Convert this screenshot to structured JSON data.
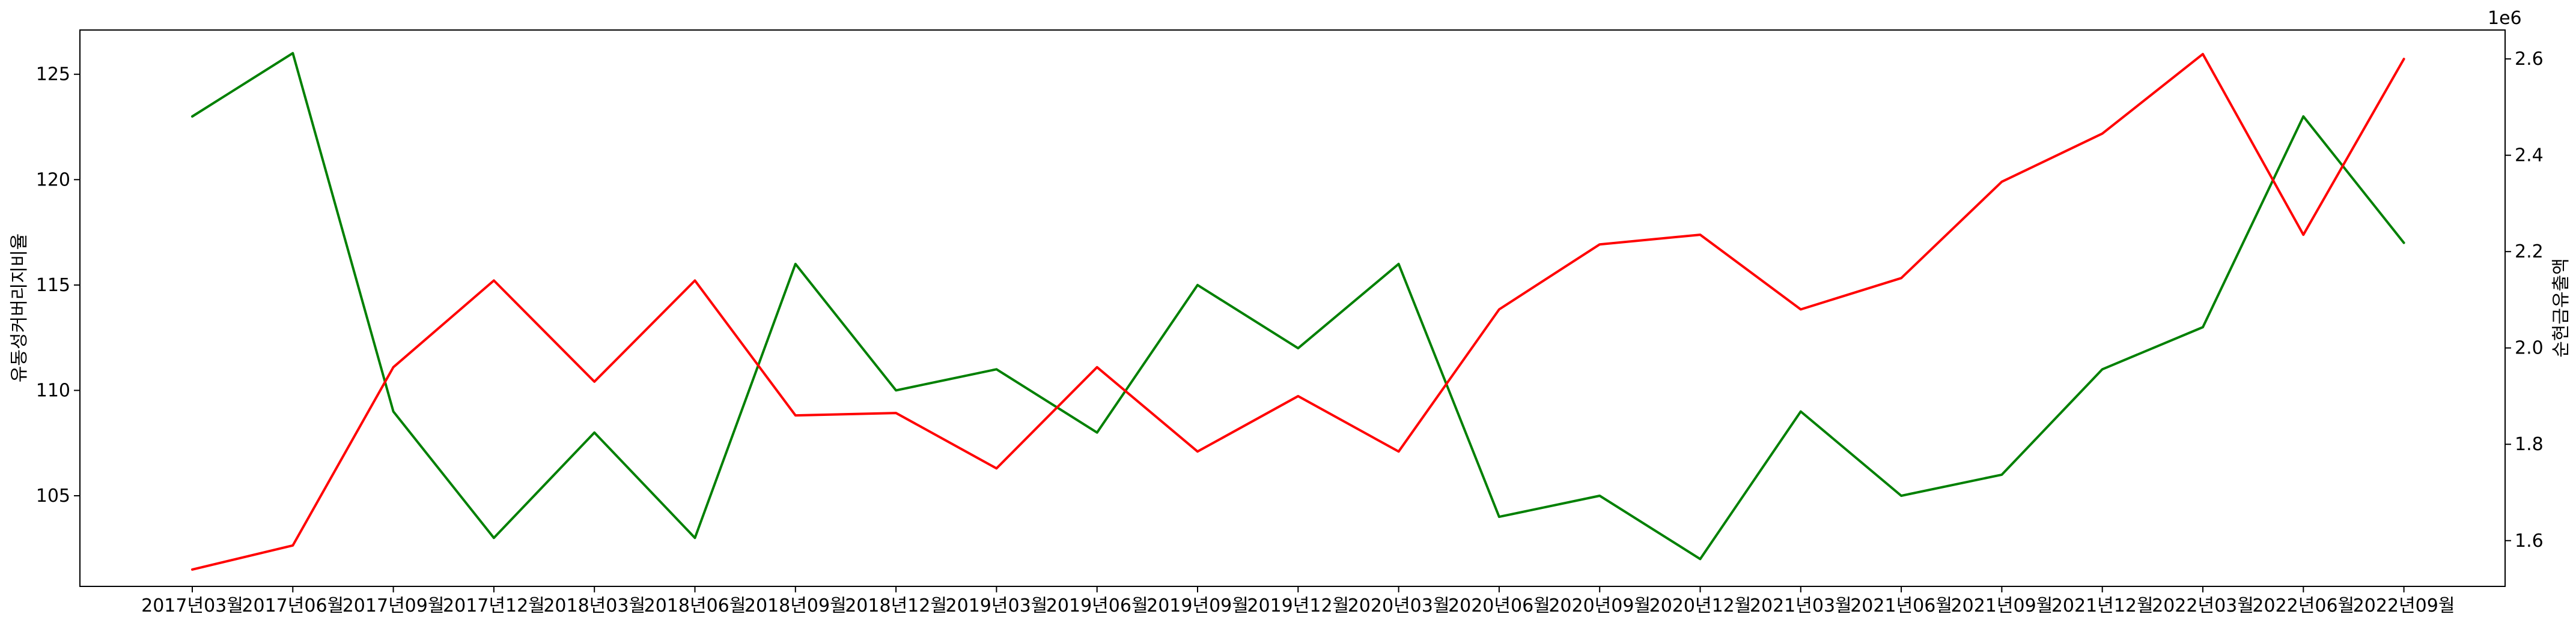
{
  "chart_data": {
    "type": "line",
    "categories": [
      "2017년03월",
      "2017년06월",
      "2017년09월",
      "2017년12월",
      "2018년03월",
      "2018년06월",
      "2018년09월",
      "2018년12월",
      "2019년03월",
      "2019년06월",
      "2019년09월",
      "2019년12월",
      "2020년03월",
      "2020년06월",
      "2020년09월",
      "2020년12월",
      "2021년03월",
      "2021년06월",
      "2021년09월",
      "2021년12월",
      "2022년03월",
      "2022년06월",
      "2022년09월"
    ],
    "y_left": {
      "label": "유동성커버리지비율",
      "ticks": [
        105,
        110,
        115,
        120,
        125
      ],
      "tick_labels": [
        "105",
        "110",
        "115",
        "120",
        "125"
      ],
      "ylim": [
        100.7,
        127.1
      ]
    },
    "y_right": {
      "label": "순현금유출액",
      "offset_text": "1e6",
      "ticks": [
        1.6,
        1.8,
        2.0,
        2.2,
        2.4,
        2.6
      ],
      "tick_labels": [
        "1.6",
        "1.8",
        "2.0",
        "2.2",
        "2.4",
        "2.6"
      ],
      "ylim": [
        1.505,
        2.66
      ]
    },
    "series": [
      {
        "axis": "left",
        "color": "#008000",
        "values": [
          123,
          126,
          109,
          103,
          108,
          103,
          116,
          110,
          111,
          108,
          115,
          112,
          116,
          104,
          105,
          102,
          109,
          105,
          106,
          111,
          113,
          123,
          117
        ]
      },
      {
        "axis": "right",
        "color": "#ff0000",
        "values": [
          1.54,
          1.59,
          1.96,
          2.14,
          1.93,
          2.14,
          1.86,
          1.865,
          1.75,
          1.96,
          1.785,
          1.9,
          1.785,
          2.08,
          2.215,
          2.235,
          2.08,
          2.145,
          2.345,
          2.445,
          2.61,
          2.235,
          2.6
        ]
      }
    ]
  }
}
